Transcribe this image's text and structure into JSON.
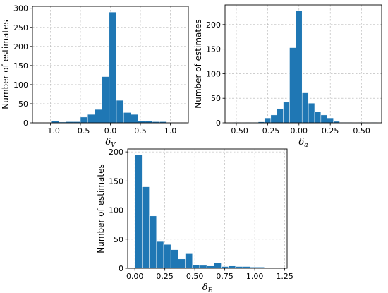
{
  "chart_data": [
    {
      "type": "bar",
      "title": "",
      "xlabel_symbol": "δ",
      "xlabel_subscript": "V",
      "ylabel": "Number of estimates",
      "xlim": [
        -1.3,
        1.3
      ],
      "ylim": [
        0,
        305
      ],
      "xticks": [
        -1.0,
        -0.5,
        0.0,
        0.5,
        1.0
      ],
      "xtick_labels": [
        "−1.0",
        "−0.5",
        "0.0",
        "0.5",
        "1.0"
      ],
      "yticks": [
        0,
        50,
        100,
        150,
        200,
        250,
        300
      ],
      "ytick_labels": [
        "0",
        "50",
        "100",
        "150",
        "200",
        "250",
        "300"
      ],
      "grid": true,
      "color": "#1f77b4",
      "bins": [
        {
          "x0": -0.98,
          "x1": -0.86,
          "count": 5
        },
        {
          "x0": -0.86,
          "x1": -0.74,
          "count": 2
        },
        {
          "x0": -0.74,
          "x1": -0.62,
          "count": 3
        },
        {
          "x0": -0.62,
          "x1": -0.5,
          "count": 3
        },
        {
          "x0": -0.5,
          "x1": -0.38,
          "count": 15
        },
        {
          "x0": -0.38,
          "x1": -0.26,
          "count": 22
        },
        {
          "x0": -0.26,
          "x1": -0.14,
          "count": 35
        },
        {
          "x0": -0.14,
          "x1": -0.02,
          "count": 121
        },
        {
          "x0": -0.02,
          "x1": 0.1,
          "count": 290
        },
        {
          "x0": 0.1,
          "x1": 0.22,
          "count": 59
        },
        {
          "x0": 0.22,
          "x1": 0.34,
          "count": 27
        },
        {
          "x0": 0.34,
          "x1": 0.46,
          "count": 22
        },
        {
          "x0": 0.46,
          "x1": 0.58,
          "count": 6
        },
        {
          "x0": 0.58,
          "x1": 0.7,
          "count": 5
        },
        {
          "x0": 0.7,
          "x1": 0.82,
          "count": 3
        },
        {
          "x0": 0.82,
          "x1": 0.94,
          "count": 3
        },
        {
          "x0": 0.94,
          "x1": 1.06,
          "count": 1
        }
      ]
    },
    {
      "type": "bar",
      "title": "",
      "xlabel_symbol": "δ",
      "xlabel_subscript": "a",
      "ylabel": "Number of estimates",
      "xlim": [
        -0.59,
        0.66
      ],
      "ylim": [
        0,
        240
      ],
      "xticks": [
        -0.5,
        -0.25,
        0.0,
        0.25,
        0.5
      ],
      "xtick_labels": [
        "−0.50",
        "−0.25",
        "0.00",
        "0.25",
        "0.50"
      ],
      "yticks": [
        0,
        50,
        100,
        150,
        200
      ],
      "ytick_labels": [
        "0",
        "50",
        "100",
        "150",
        "200"
      ],
      "grid": true,
      "color": "#1f77b4",
      "bins": [
        {
          "x0": -0.525,
          "x1": -0.475,
          "count": 1
        },
        {
          "x0": -0.475,
          "x1": -0.425,
          "count": 0
        },
        {
          "x0": -0.425,
          "x1": -0.375,
          "count": 1
        },
        {
          "x0": -0.375,
          "x1": -0.325,
          "count": 1
        },
        {
          "x0": -0.325,
          "x1": -0.275,
          "count": 2
        },
        {
          "x0": -0.275,
          "x1": -0.225,
          "count": 10
        },
        {
          "x0": -0.225,
          "x1": -0.175,
          "count": 16
        },
        {
          "x0": -0.175,
          "x1": -0.125,
          "count": 29
        },
        {
          "x0": -0.125,
          "x1": -0.075,
          "count": 42
        },
        {
          "x0": -0.075,
          "x1": -0.025,
          "count": 153
        },
        {
          "x0": -0.025,
          "x1": 0.025,
          "count": 228
        },
        {
          "x0": 0.025,
          "x1": 0.075,
          "count": 61
        },
        {
          "x0": 0.075,
          "x1": 0.125,
          "count": 40
        },
        {
          "x0": 0.125,
          "x1": 0.175,
          "count": 22
        },
        {
          "x0": 0.175,
          "x1": 0.225,
          "count": 16
        },
        {
          "x0": 0.225,
          "x1": 0.275,
          "count": 10
        },
        {
          "x0": 0.275,
          "x1": 0.325,
          "count": 3
        },
        {
          "x0": 0.325,
          "x1": 0.375,
          "count": 1
        },
        {
          "x0": 0.375,
          "x1": 0.425,
          "count": 1
        },
        {
          "x0": 0.425,
          "x1": 0.475,
          "count": 0
        },
        {
          "x0": 0.475,
          "x1": 0.525,
          "count": 1
        },
        {
          "x0": 0.525,
          "x1": 0.575,
          "count": 0
        },
        {
          "x0": 0.575,
          "x1": 0.625,
          "count": 1
        }
      ]
    },
    {
      "type": "bar",
      "title": "",
      "xlabel_symbol": "δ",
      "xlabel_subscript": "E",
      "ylabel": "Number of estimates",
      "xlim": [
        -0.06,
        1.27
      ],
      "ylim": [
        0,
        205
      ],
      "xticks": [
        0.0,
        0.25,
        0.5,
        0.75,
        1.0,
        1.25
      ],
      "xtick_labels": [
        "0.00",
        "0.25",
        "0.50",
        "0.75",
        "1.00",
        "1.25"
      ],
      "yticks": [
        0,
        50,
        100,
        150,
        200
      ],
      "ytick_labels": [
        "0",
        "50",
        "100",
        "150",
        "200"
      ],
      "grid": true,
      "color": "#1f77b4",
      "bins": [
        {
          "x0": 0.0,
          "x1": 0.06,
          "count": 195
        },
        {
          "x0": 0.06,
          "x1": 0.12,
          "count": 140
        },
        {
          "x0": 0.12,
          "x1": 0.18,
          "count": 90
        },
        {
          "x0": 0.18,
          "x1": 0.24,
          "count": 46
        },
        {
          "x0": 0.24,
          "x1": 0.3,
          "count": 41
        },
        {
          "x0": 0.3,
          "x1": 0.36,
          "count": 32
        },
        {
          "x0": 0.36,
          "x1": 0.42,
          "count": 16
        },
        {
          "x0": 0.42,
          "x1": 0.48,
          "count": 25
        },
        {
          "x0": 0.48,
          "x1": 0.54,
          "count": 6
        },
        {
          "x0": 0.54,
          "x1": 0.6,
          "count": 5
        },
        {
          "x0": 0.6,
          "x1": 0.66,
          "count": 4
        },
        {
          "x0": 0.66,
          "x1": 0.72,
          "count": 10
        },
        {
          "x0": 0.72,
          "x1": 0.78,
          "count": 3
        },
        {
          "x0": 0.78,
          "x1": 0.84,
          "count": 4
        },
        {
          "x0": 0.84,
          "x1": 0.9,
          "count": 3
        },
        {
          "x0": 0.9,
          "x1": 0.96,
          "count": 3
        },
        {
          "x0": 0.96,
          "x1": 1.02,
          "count": 2
        },
        {
          "x0": 1.02,
          "x1": 1.08,
          "count": 2
        },
        {
          "x0": 1.08,
          "x1": 1.14,
          "count": 1
        },
        {
          "x0": 1.14,
          "x1": 1.2,
          "count": 1
        }
      ]
    }
  ]
}
